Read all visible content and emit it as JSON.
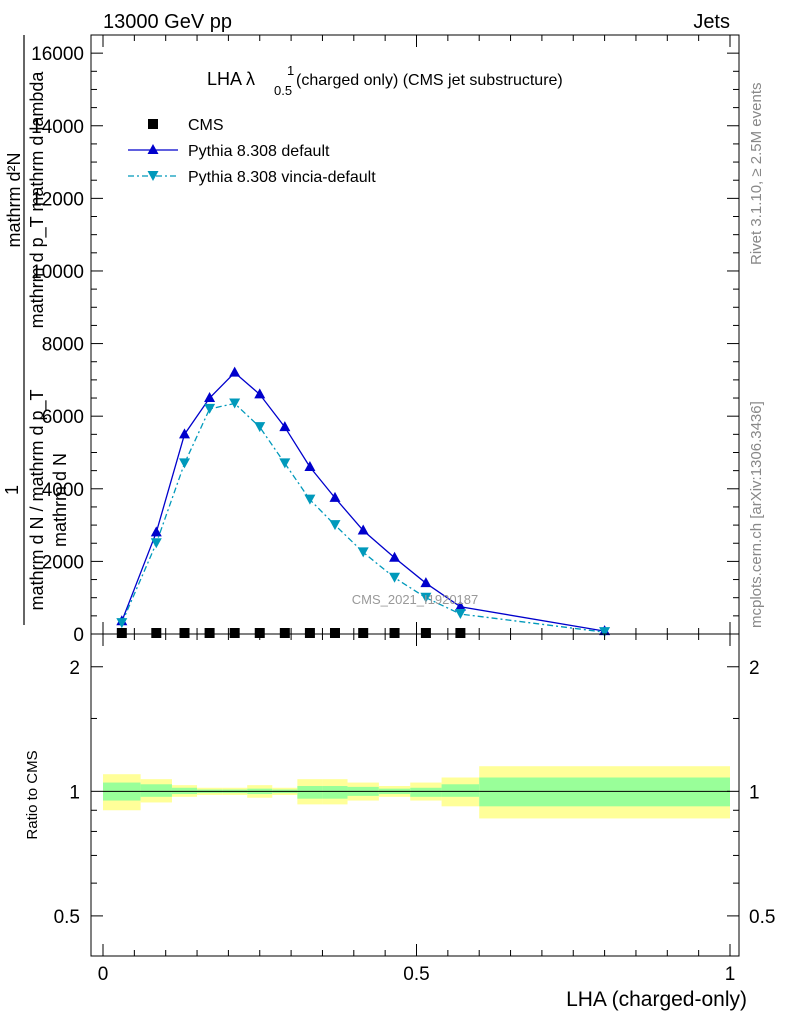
{
  "header": {
    "left": "13000 GeV pp",
    "right": "Jets"
  },
  "side_labels": {
    "rivet": "Rivet 3.1.10, ≥ 2.5M events",
    "mcplots": "mcplots.cern.ch [arXiv:1306.3436]"
  },
  "colors": {
    "cms": "#000000",
    "pythia_default": "#0000cc",
    "pythia_vincia": "#0099bb",
    "band_inner": "#99ff99",
    "band_outer": "#ffff99"
  },
  "chart_data": [
    {
      "type": "line",
      "title": "LHA λ",
      "title_sup": "1",
      "title_sub": "0.5",
      "title_rest": " (charged only) (CMS jet substructure)",
      "ylabel_numerator_lines": [
        "mathrm d²N",
        "mathrm d p_T mathrm d lambda"
      ],
      "ylabel_denominator_lines": [
        "mathrm d N / mathrm d p_T",
        "mathrm d N"
      ],
      "ylabel_fraction_one": "1",
      "watermark": "CMS_2021_I1920187",
      "xlim": [
        0,
        1
      ],
      "ylim": [
        0,
        16500
      ],
      "yticks": [
        0,
        2000,
        4000,
        6000,
        8000,
        10000,
        12000,
        14000,
        16000
      ],
      "ytick_labels": [
        "0",
        "2000",
        "4000",
        "6000",
        "8000",
        "10000",
        "12000",
        "14000",
        "16000"
      ],
      "legend_position": "top-left",
      "series": [
        {
          "name": "CMS",
          "marker": "square",
          "x": [
            0.03,
            0.085,
            0.13,
            0.17,
            0.21,
            0.25,
            0.29,
            0.33,
            0.37,
            0.415,
            0.465,
            0.515,
            0.57
          ],
          "values": [
            12,
            15,
            18,
            20,
            22,
            21,
            19,
            17,
            15,
            13,
            11,
            9,
            7
          ]
        },
        {
          "name": "Pythia 8.308 default",
          "marker": "triangle-up",
          "x": [
            0.03,
            0.085,
            0.13,
            0.17,
            0.21,
            0.25,
            0.29,
            0.33,
            0.37,
            0.415,
            0.465,
            0.515,
            0.57,
            0.8
          ],
          "values": [
            350,
            2800,
            5500,
            6500,
            7200,
            6600,
            5700,
            4600,
            3750,
            2850,
            2100,
            1400,
            750,
            80
          ]
        },
        {
          "name": "Pythia 8.308 vincia-default",
          "marker": "triangle-down",
          "x": [
            0.03,
            0.085,
            0.13,
            0.17,
            0.21,
            0.25,
            0.29,
            0.33,
            0.37,
            0.415,
            0.465,
            0.515,
            0.57,
            0.8
          ],
          "values": [
            300,
            2500,
            4700,
            6200,
            6350,
            5700,
            4700,
            3700,
            3000,
            2250,
            1550,
            1000,
            550,
            50
          ]
        }
      ]
    },
    {
      "type": "area",
      "ylabel": "Ratio to CMS",
      "xlabel": "LHA (charged-only)",
      "xlim": [
        0,
        1
      ],
      "ylim": [
        0.4,
        2.4
      ],
      "log_y": true,
      "yticks": [
        0.5,
        1,
        2
      ],
      "ytick_labels": [
        "0.5",
        "1",
        "2"
      ],
      "xticks": [
        0,
        0.5,
        1
      ],
      "xtick_labels": [
        "0",
        "0.5",
        "1"
      ],
      "bands": [
        {
          "x0": 0.0,
          "x1": 0.06,
          "inner": [
            0.95,
            1.05
          ],
          "outer": [
            0.9,
            1.1
          ]
        },
        {
          "x0": 0.06,
          "x1": 0.11,
          "inner": [
            0.97,
            1.04
          ],
          "outer": [
            0.94,
            1.07
          ]
        },
        {
          "x0": 0.11,
          "x1": 0.15,
          "inner": [
            0.985,
            1.02
          ],
          "outer": [
            0.97,
            1.035
          ]
        },
        {
          "x0": 0.15,
          "x1": 0.19,
          "inner": [
            0.99,
            1.01
          ],
          "outer": [
            0.98,
            1.02
          ]
        },
        {
          "x0": 0.19,
          "x1": 0.23,
          "inner": [
            0.99,
            1.01
          ],
          "outer": [
            0.98,
            1.02
          ]
        },
        {
          "x0": 0.23,
          "x1": 0.27,
          "inner": [
            0.985,
            1.015
          ],
          "outer": [
            0.965,
            1.035
          ]
        },
        {
          "x0": 0.27,
          "x1": 0.31,
          "inner": [
            0.99,
            1.01
          ],
          "outer": [
            0.98,
            1.02
          ]
        },
        {
          "x0": 0.31,
          "x1": 0.35,
          "inner": [
            0.96,
            1.03
          ],
          "outer": [
            0.93,
            1.07
          ]
        },
        {
          "x0": 0.35,
          "x1": 0.39,
          "inner": [
            0.96,
            1.03
          ],
          "outer": [
            0.93,
            1.07
          ]
        },
        {
          "x0": 0.39,
          "x1": 0.44,
          "inner": [
            0.975,
            1.025
          ],
          "outer": [
            0.95,
            1.05
          ]
        },
        {
          "x0": 0.44,
          "x1": 0.49,
          "inner": [
            0.985,
            1.015
          ],
          "outer": [
            0.97,
            1.03
          ]
        },
        {
          "x0": 0.49,
          "x1": 0.54,
          "inner": [
            0.97,
            1.02
          ],
          "outer": [
            0.95,
            1.05
          ]
        },
        {
          "x0": 0.54,
          "x1": 0.6,
          "inner": [
            0.97,
            1.04
          ],
          "outer": [
            0.92,
            1.08
          ]
        },
        {
          "x0": 0.6,
          "x1": 1.0,
          "inner": [
            0.92,
            1.08
          ],
          "outer": [
            0.86,
            1.15
          ]
        }
      ]
    }
  ]
}
